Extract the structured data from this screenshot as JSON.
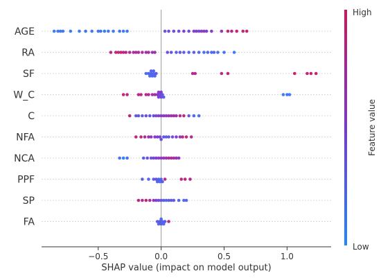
{
  "chart_data": {
    "type": "scatter",
    "title": "",
    "xlabel": "SHAP value (impact on model output)",
    "ylabel": "",
    "xlim": [
      -0.95,
      1.35
    ],
    "x_ticks": [
      -0.5,
      0.0,
      0.5,
      1.0
    ],
    "x_tick_labels": [
      "−0.5",
      "0.0",
      "0.5",
      "1.0"
    ],
    "features": [
      "AGE",
      "RA",
      "SF",
      "W_C",
      "C",
      "NFA",
      "NCA",
      "PPF",
      "SP",
      "FA"
    ],
    "colorbar": {
      "title": "Feature value",
      "high_label": "High",
      "low_label": "Low",
      "low_color": "#1e88ff",
      "high_color": "#d0145a"
    },
    "series": [
      {
        "feature": "AGE",
        "points": [
          {
            "x": -0.85,
            "v": 0.1
          },
          {
            "x": -0.82,
            "v": 0.12
          },
          {
            "x": -0.8,
            "v": 0.15
          },
          {
            "x": -0.78,
            "v": 0.1
          },
          {
            "x": -0.72,
            "v": 0.12
          },
          {
            "x": -0.65,
            "v": 0.1
          },
          {
            "x": -0.6,
            "v": 0.15
          },
          {
            "x": -0.55,
            "v": 0.1
          },
          {
            "x": -0.5,
            "v": 0.12
          },
          {
            "x": -0.48,
            "v": 0.15
          },
          {
            "x": -0.45,
            "v": 0.1
          },
          {
            "x": -0.42,
            "v": 0.12
          },
          {
            "x": -0.38,
            "v": 0.1
          },
          {
            "x": -0.33,
            "v": 0.15
          },
          {
            "x": -0.3,
            "v": 0.12
          },
          {
            "x": -0.27,
            "v": 0.1
          },
          {
            "x": 0.03,
            "v": 0.35
          },
          {
            "x": 0.06,
            "v": 0.4
          },
          {
            "x": 0.1,
            "v": 0.45
          },
          {
            "x": 0.14,
            "v": 0.4
          },
          {
            "x": 0.18,
            "v": 0.5
          },
          {
            "x": 0.22,
            "v": 0.45
          },
          {
            "x": 0.26,
            "v": 0.55
          },
          {
            "x": 0.28,
            "v": 0.5
          },
          {
            "x": 0.3,
            "v": 0.45
          },
          {
            "x": 0.32,
            "v": 0.55
          },
          {
            "x": 0.34,
            "v": 0.6
          },
          {
            "x": 0.36,
            "v": 0.5
          },
          {
            "x": 0.4,
            "v": 0.55
          },
          {
            "x": 0.48,
            "v": 0.6
          },
          {
            "x": 0.53,
            "v": 0.9
          },
          {
            "x": 0.56,
            "v": 0.85
          },
          {
            "x": 0.6,
            "v": 0.95
          },
          {
            "x": 0.65,
            "v": 0.9
          },
          {
            "x": 0.68,
            "v": 0.92
          }
        ]
      },
      {
        "feature": "RA",
        "points": [
          {
            "x": -0.4,
            "v": 0.85
          },
          {
            "x": -0.36,
            "v": 0.9
          },
          {
            "x": -0.34,
            "v": 0.88
          },
          {
            "x": -0.32,
            "v": 0.92
          },
          {
            "x": -0.3,
            "v": 0.85
          },
          {
            "x": -0.28,
            "v": 0.9
          },
          {
            "x": -0.25,
            "v": 0.8
          },
          {
            "x": -0.22,
            "v": 0.75
          },
          {
            "x": -0.2,
            "v": 0.7
          },
          {
            "x": -0.18,
            "v": 0.8
          },
          {
            "x": -0.15,
            "v": 0.75
          },
          {
            "x": -0.12,
            "v": 0.7
          },
          {
            "x": -0.1,
            "v": 0.75
          },
          {
            "x": -0.07,
            "v": 0.65
          },
          {
            "x": -0.05,
            "v": 0.7
          },
          {
            "x": 0.05,
            "v": 0.4
          },
          {
            "x": 0.08,
            "v": 0.35
          },
          {
            "x": 0.12,
            "v": 0.3
          },
          {
            "x": 0.15,
            "v": 0.35
          },
          {
            "x": 0.18,
            "v": 0.3
          },
          {
            "x": 0.22,
            "v": 0.25
          },
          {
            "x": 0.26,
            "v": 0.3
          },
          {
            "x": 0.3,
            "v": 0.25
          },
          {
            "x": 0.34,
            "v": 0.2
          },
          {
            "x": 0.37,
            "v": 0.25
          },
          {
            "x": 0.4,
            "v": 0.2
          },
          {
            "x": 0.42,
            "v": 0.25
          },
          {
            "x": 0.45,
            "v": 0.2
          },
          {
            "x": 0.5,
            "v": 0.15
          },
          {
            "x": 0.58,
            "v": 0.1
          }
        ]
      },
      {
        "feature": "SF",
        "points": [
          {
            "x": -0.12,
            "v": 0.2
          },
          {
            "x": -0.1,
            "v": 0.25
          },
          {
            "x": -0.09,
            "v": 0.2
          },
          {
            "x": -0.08,
            "v": 0.3
          },
          {
            "x": -0.07,
            "v": 0.25
          },
          {
            "x": -0.06,
            "v": 0.2
          },
          {
            "x": -0.05,
            "v": 0.25
          },
          {
            "x": -0.04,
            "v": 0.3
          },
          {
            "x": -0.08,
            "v": 0.22
          },
          {
            "x": -0.06,
            "v": 0.28
          },
          {
            "x": 0.25,
            "v": 0.85
          },
          {
            "x": 0.27,
            "v": 0.8
          },
          {
            "x": 0.48,
            "v": 0.85
          },
          {
            "x": 0.53,
            "v": 0.9
          },
          {
            "x": 1.06,
            "v": 0.95
          },
          {
            "x": 1.16,
            "v": 0.9
          },
          {
            "x": 1.19,
            "v": 0.95
          },
          {
            "x": 1.23,
            "v": 0.92
          }
        ]
      },
      {
        "feature": "W_C",
        "points": [
          {
            "x": -0.3,
            "v": 0.9
          },
          {
            "x": -0.27,
            "v": 0.85
          },
          {
            "x": -0.18,
            "v": 0.8
          },
          {
            "x": -0.16,
            "v": 0.9
          },
          {
            "x": -0.12,
            "v": 0.85
          },
          {
            "x": -0.1,
            "v": 0.8
          },
          {
            "x": -0.07,
            "v": 0.75
          },
          {
            "x": -0.05,
            "v": 0.7
          },
          {
            "x": -0.03,
            "v": 0.6
          },
          {
            "x": -0.02,
            "v": 0.5
          },
          {
            "x": -0.01,
            "v": 0.45
          },
          {
            "x": 0.0,
            "v": 0.4
          },
          {
            "x": 0.01,
            "v": 0.35
          },
          {
            "x": 0.02,
            "v": 0.3
          },
          {
            "x": -0.02,
            "v": 0.55
          },
          {
            "x": 0.0,
            "v": 0.5
          },
          {
            "x": 0.97,
            "v": 0.1
          },
          {
            "x": 1.0,
            "v": 0.15
          },
          {
            "x": 1.02,
            "v": 0.1
          }
        ]
      },
      {
        "feature": "C",
        "points": [
          {
            "x": -0.25,
            "v": 0.85
          },
          {
            "x": -0.2,
            "v": 0.3
          },
          {
            "x": -0.18,
            "v": 0.35
          },
          {
            "x": -0.15,
            "v": 0.3
          },
          {
            "x": -0.12,
            "v": 0.4
          },
          {
            "x": -0.09,
            "v": 0.35
          },
          {
            "x": -0.06,
            "v": 0.4
          },
          {
            "x": -0.04,
            "v": 0.45
          },
          {
            "x": -0.02,
            "v": 0.5
          },
          {
            "x": 0.0,
            "v": 0.55
          },
          {
            "x": 0.02,
            "v": 0.6
          },
          {
            "x": 0.04,
            "v": 0.55
          },
          {
            "x": 0.06,
            "v": 0.65
          },
          {
            "x": 0.08,
            "v": 0.7
          },
          {
            "x": 0.1,
            "v": 0.75
          },
          {
            "x": 0.12,
            "v": 0.7
          },
          {
            "x": 0.15,
            "v": 0.8
          },
          {
            "x": 0.18,
            "v": 0.85
          },
          {
            "x": 0.22,
            "v": 0.3
          },
          {
            "x": 0.26,
            "v": 0.25
          },
          {
            "x": 0.3,
            "v": 0.2
          }
        ]
      },
      {
        "feature": "NFA",
        "points": [
          {
            "x": -0.2,
            "v": 0.9
          },
          {
            "x": -0.16,
            "v": 0.85
          },
          {
            "x": -0.13,
            "v": 0.8
          },
          {
            "x": -0.1,
            "v": 0.7
          },
          {
            "x": -0.08,
            "v": 0.6
          },
          {
            "x": -0.05,
            "v": 0.55
          },
          {
            "x": -0.03,
            "v": 0.5
          },
          {
            "x": -0.01,
            "v": 0.45
          },
          {
            "x": 0.0,
            "v": 0.4
          },
          {
            "x": 0.02,
            "v": 0.35
          },
          {
            "x": 0.04,
            "v": 0.3
          },
          {
            "x": 0.06,
            "v": 0.35
          },
          {
            "x": 0.09,
            "v": 0.4
          },
          {
            "x": 0.12,
            "v": 0.5
          },
          {
            "x": 0.15,
            "v": 0.6
          },
          {
            "x": 0.17,
            "v": 0.85
          },
          {
            "x": 0.2,
            "v": 0.9
          },
          {
            "x": 0.24,
            "v": 0.8
          }
        ]
      },
      {
        "feature": "NCA",
        "points": [
          {
            "x": -0.33,
            "v": 0.15
          },
          {
            "x": -0.3,
            "v": 0.1
          },
          {
            "x": -0.27,
            "v": 0.15
          },
          {
            "x": -0.14,
            "v": 0.3
          },
          {
            "x": -0.11,
            "v": 0.35
          },
          {
            "x": -0.08,
            "v": 0.4
          },
          {
            "x": -0.06,
            "v": 0.45
          },
          {
            "x": -0.04,
            "v": 0.5
          },
          {
            "x": -0.02,
            "v": 0.55
          },
          {
            "x": 0.0,
            "v": 0.6
          },
          {
            "x": 0.02,
            "v": 0.65
          },
          {
            "x": 0.04,
            "v": 0.7
          },
          {
            "x": 0.06,
            "v": 0.75
          },
          {
            "x": 0.08,
            "v": 0.8
          },
          {
            "x": 0.1,
            "v": 0.7
          },
          {
            "x": 0.12,
            "v": 0.65
          },
          {
            "x": 0.14,
            "v": 0.6
          }
        ]
      },
      {
        "feature": "PPF",
        "points": [
          {
            "x": -0.15,
            "v": 0.3
          },
          {
            "x": -0.1,
            "v": 0.25
          },
          {
            "x": -0.06,
            "v": 0.3
          },
          {
            "x": -0.04,
            "v": 0.35
          },
          {
            "x": -0.03,
            "v": 0.25
          },
          {
            "x": -0.02,
            "v": 0.3
          },
          {
            "x": -0.01,
            "v": 0.2
          },
          {
            "x": 0.0,
            "v": 0.25
          },
          {
            "x": 0.01,
            "v": 0.3
          },
          {
            "x": 0.03,
            "v": 0.8
          },
          {
            "x": 0.16,
            "v": 0.85
          },
          {
            "x": 0.19,
            "v": 0.9
          },
          {
            "x": 0.23,
            "v": 0.85
          }
        ]
      },
      {
        "feature": "SP",
        "points": [
          {
            "x": -0.18,
            "v": 0.85
          },
          {
            "x": -0.15,
            "v": 0.8
          },
          {
            "x": -0.12,
            "v": 0.9
          },
          {
            "x": -0.09,
            "v": 0.75
          },
          {
            "x": -0.06,
            "v": 0.6
          },
          {
            "x": -0.04,
            "v": 0.5
          },
          {
            "x": -0.02,
            "v": 0.4
          },
          {
            "x": 0.0,
            "v": 0.35
          },
          {
            "x": 0.02,
            "v": 0.3
          },
          {
            "x": 0.04,
            "v": 0.25
          },
          {
            "x": 0.06,
            "v": 0.3
          },
          {
            "x": 0.08,
            "v": 0.35
          },
          {
            "x": 0.1,
            "v": 0.3
          },
          {
            "x": 0.14,
            "v": 0.25
          },
          {
            "x": 0.18,
            "v": 0.2
          },
          {
            "x": 0.2,
            "v": 0.25
          }
        ]
      },
      {
        "feature": "FA",
        "points": [
          {
            "x": -0.03,
            "v": 0.3
          },
          {
            "x": -0.02,
            "v": 0.25
          },
          {
            "x": -0.01,
            "v": 0.35
          },
          {
            "x": 0.0,
            "v": 0.3
          },
          {
            "x": 0.01,
            "v": 0.25
          },
          {
            "x": 0.02,
            "v": 0.2
          },
          {
            "x": 0.03,
            "v": 0.3
          },
          {
            "x": 0.06,
            "v": 0.85
          },
          {
            "x": 0.0,
            "v": 0.2
          }
        ]
      }
    ]
  }
}
